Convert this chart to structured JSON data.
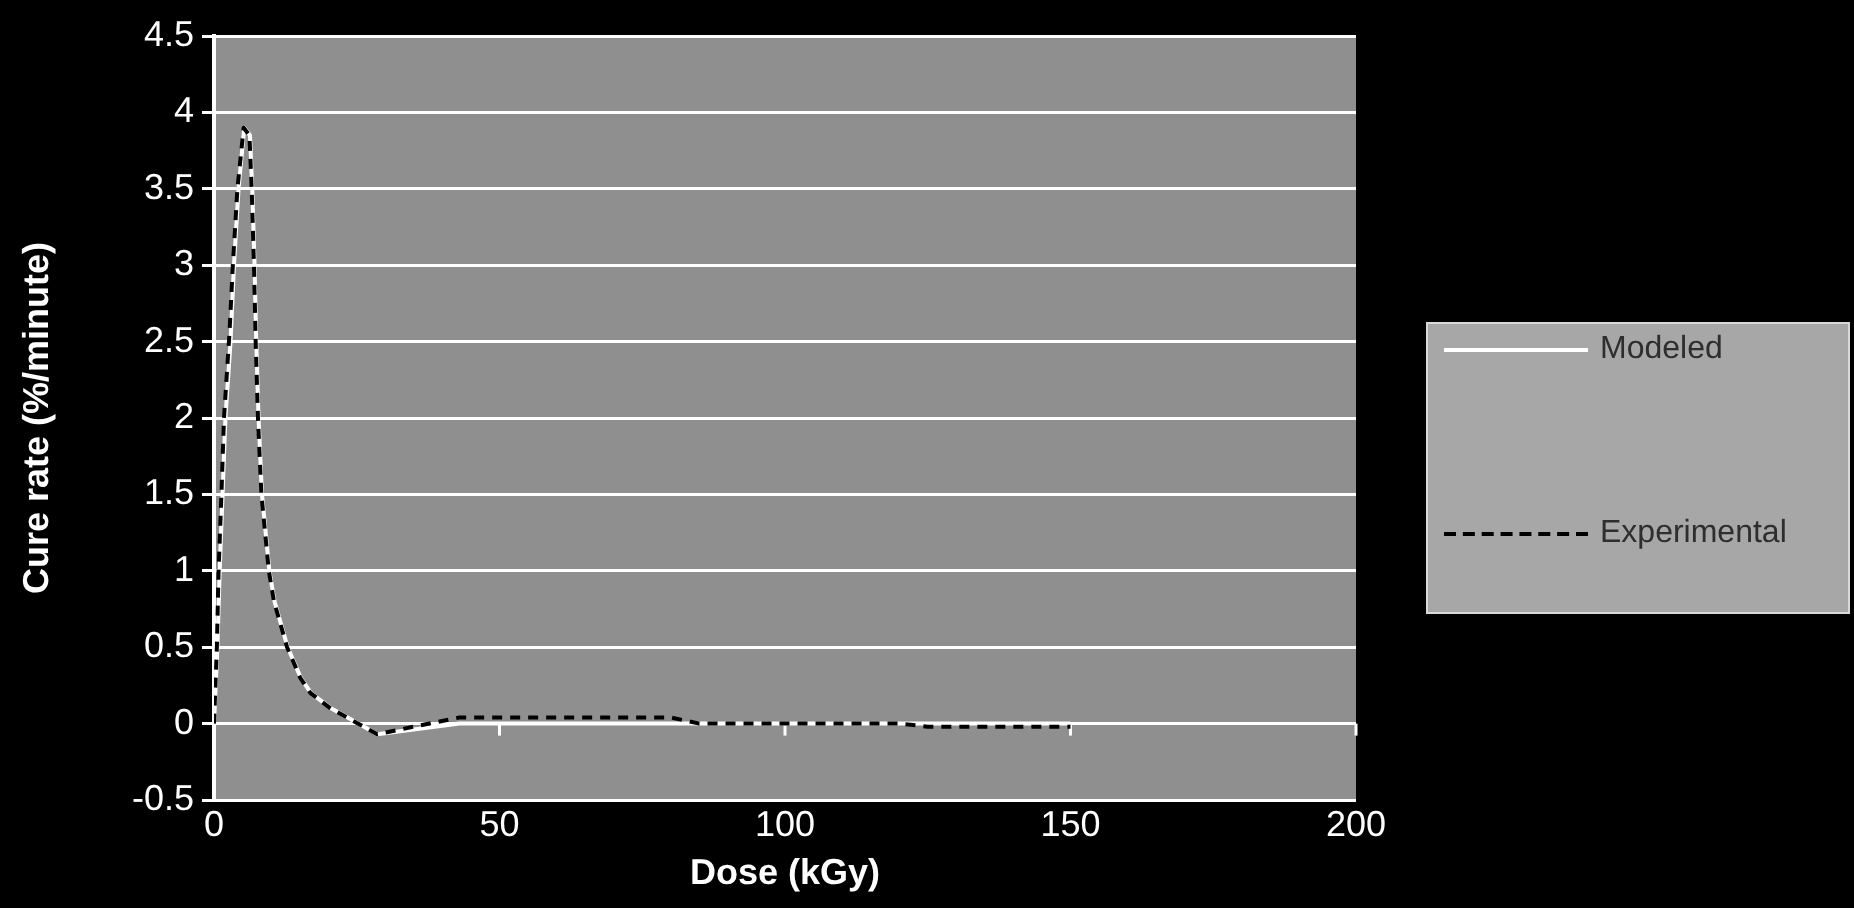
{
  "chart_data": {
    "type": "line",
    "xlabel": "Dose (kGy)",
    "ylabel": "Cure rate (%/minute)",
    "xlim": [
      0,
      200
    ],
    "xticks": [
      0,
      50,
      100,
      150,
      200
    ],
    "ylim": [
      -0.5,
      4.5
    ],
    "yticks": [
      -0.5,
      0,
      0.5,
      1,
      1.5,
      2,
      2.5,
      3,
      3.5,
      4,
      4.5
    ],
    "grid": "y",
    "legend": "right",
    "series": [
      {
        "name": "Modeled",
        "color": "#ffffff",
        "line_style": "solid",
        "x": [
          0,
          0.6,
          1,
          1.5,
          2,
          2.9,
          3.5,
          4.3,
          5.3,
          6.3,
          6.7,
          7.1,
          7.4,
          7.8,
          8.4,
          9.7,
          10.6,
          12.9,
          15.2,
          17,
          20.5,
          23.4,
          28.6,
          43,
          150
        ],
        "values": [
          0,
          0.5,
          1.0,
          1.5,
          2.0,
          2.5,
          3.0,
          3.5,
          3.9,
          3.85,
          3.5,
          3.0,
          2.5,
          2.0,
          1.5,
          1.0,
          0.8,
          0.5,
          0.3,
          0.2,
          0.1,
          0.04,
          -0.07,
          0,
          0
        ]
      },
      {
        "name": "Experimental",
        "color": "#000000",
        "line_style": "dashed",
        "x": [
          0,
          0.5,
          0.8,
          1.3,
          1.75,
          2.7,
          3.3,
          4.1,
          5.2,
          6.2,
          6.6,
          7,
          7.3,
          7.7,
          8.3,
          9.6,
          10.5,
          12.8,
          15.1,
          16.9,
          20.4,
          23.3,
          28.6,
          35,
          43,
          80,
          85,
          120,
          125,
          150
        ],
        "values": [
          0,
          0.5,
          1.0,
          1.5,
          2.0,
          2.55,
          3.0,
          3.5,
          3.9,
          3.85,
          3.5,
          3.0,
          2.5,
          2.0,
          1.5,
          1.0,
          0.8,
          0.5,
          0.3,
          0.2,
          0.1,
          0.04,
          -0.07,
          -0.02,
          0.04,
          0.04,
          0,
          0,
          -0.02,
          -0.02
        ]
      }
    ]
  }
}
